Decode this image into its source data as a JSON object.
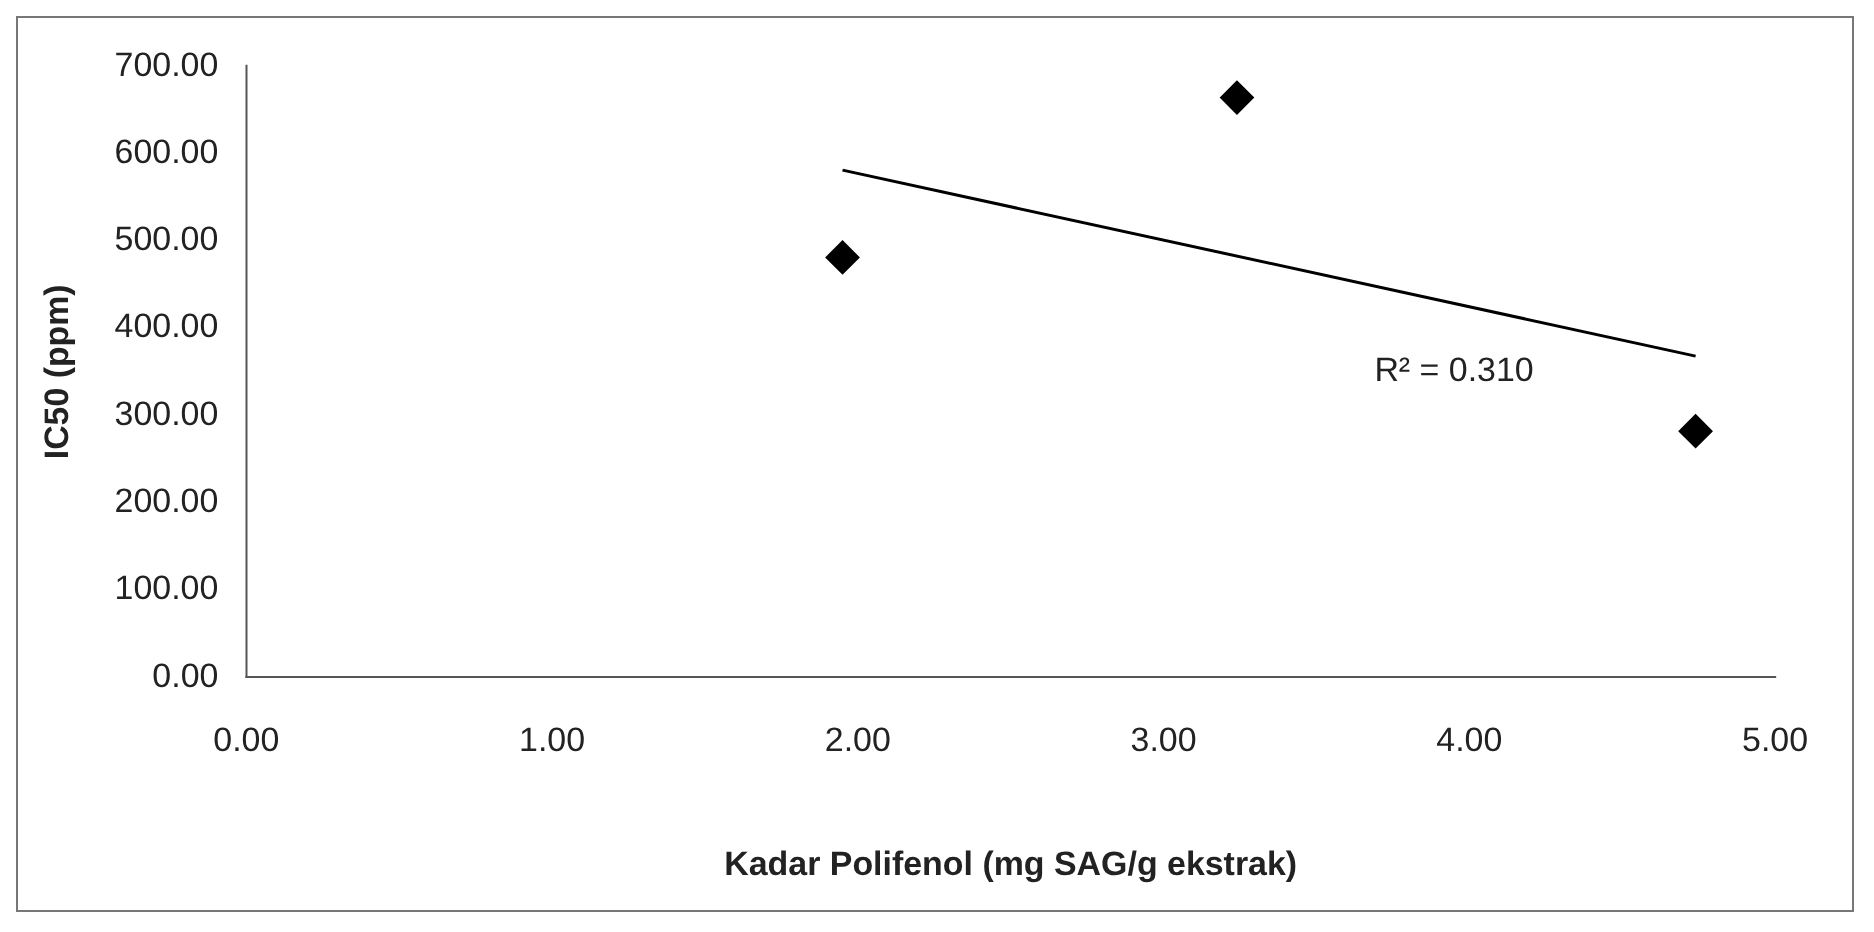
{
  "chart_data": {
    "type": "scatter",
    "xlabel": "Kadar Polifenol (mg SAG/g ekstrak)",
    "ylabel": "IC50 (ppm)",
    "series": [
      {
        "type": "scatter",
        "color": "#000000",
        "marker": "diamond",
        "x": [
          1.95,
          3.24,
          4.74
        ],
        "values": [
          481,
          664,
          282
        ]
      },
      {
        "type": "line",
        "color": "#000000",
        "marker": "none",
        "line_style": "solid",
        "x": [
          1.95,
          4.74
        ],
        "values": [
          581,
          368
        ]
      }
    ],
    "annotations": [
      "R² = 0.310"
    ],
    "xlim": [
      0,
      5
    ],
    "xticks": [
      {
        "value": 0,
        "label": "0.00"
      },
      {
        "value": 1,
        "label": "1.00"
      },
      {
        "value": 2,
        "label": "2.00"
      },
      {
        "value": 3,
        "label": "3.00"
      },
      {
        "value": 4,
        "label": "4.00"
      },
      {
        "value": 5,
        "label": "5.00"
      }
    ],
    "ylim": [
      0,
      700
    ],
    "yticks": [
      {
        "value": 0,
        "label": "0.00"
      },
      {
        "value": 100,
        "label": "100.00"
      },
      {
        "value": 200,
        "label": "200.00"
      },
      {
        "value": 300,
        "label": "300.00"
      },
      {
        "value": 400,
        "label": "400.00"
      },
      {
        "value": 500,
        "label": "500.00"
      },
      {
        "value": 600,
        "label": "600.00"
      },
      {
        "value": 700,
        "label": "700.00"
      }
    ],
    "grid": false,
    "legend": false
  }
}
